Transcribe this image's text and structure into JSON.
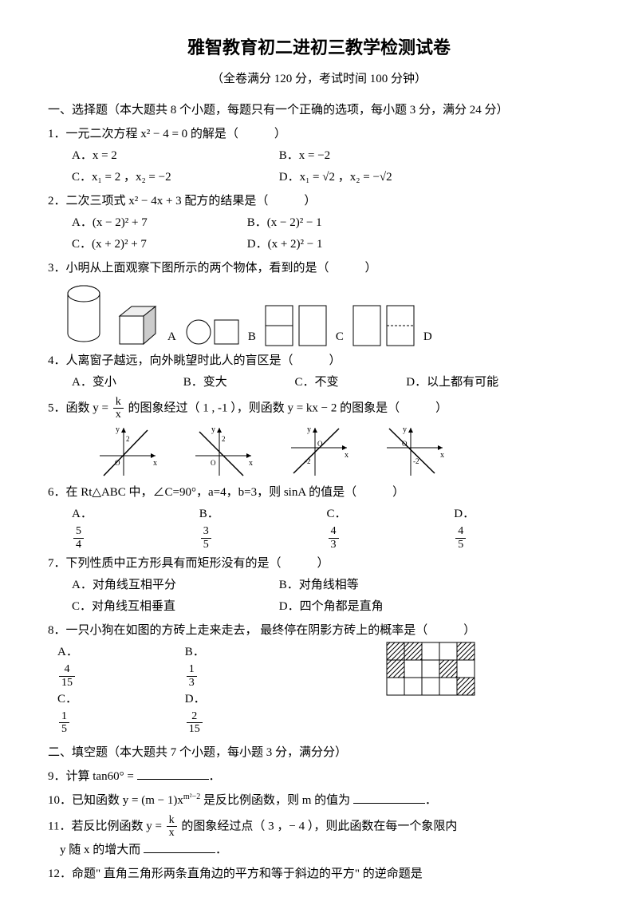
{
  "title": "雅智教育初二进初三教学检测试卷",
  "subtitle": "（全卷满分 120 分，考试时间 100 分钟）",
  "section1": "一、选择题（本大题共 8 个小题，每题只有一个正确的选项，每小题 3 分，满分 24 分）",
  "q1": {
    "stem": "1．一元二次方程 x² − 4 = 0 的解是（　　　）",
    "A": "A．x = 2",
    "B": "B．x = −2",
    "C": "C．x₁ = 2 ，x₂ = −2",
    "D": "D．x₁ = √2 ，x₂ = −√2"
  },
  "q2": {
    "stem": "2．二次三项式 x² − 4x + 3 配方的结果是（　　　）",
    "A": "A．(x − 2)² + 7",
    "B": "B．(x − 2)² − 1",
    "C": "C．(x + 2)² + 7",
    "D": "D．(x + 2)² − 1"
  },
  "q3": {
    "stem": "3．小明从上面观察下图所示的两个物体，看到的是（　　　）",
    "labels": {
      "A": "A",
      "B": "B",
      "C": "C",
      "D": "D"
    }
  },
  "q4": {
    "stem": "4．人离窗子越远，向外眺望时此人的盲区是（　　　）",
    "A": "A．变小",
    "B": "B．变大",
    "C": "C．不变",
    "D": "D．以上都有可能"
  },
  "q5": {
    "stempre": "5．函数 y = ",
    "stempost": " 的图象经过（ 1 , -1 ），则函数 y = kx − 2 的图象是（　　　）",
    "frac": {
      "n": "k",
      "d": "x"
    },
    "labels": {
      "A": "A",
      "B": "B",
      "C": "C",
      "D": "D"
    }
  },
  "q6": {
    "stem": "6．在 Rt△ABC 中，∠C=90°，a=4，b=3，则 sinA 的值是（　　　）",
    "A": "A．",
    "B": "B．",
    "C": "C．",
    "D": "D．",
    "fracs": {
      "A": {
        "n": "5",
        "d": "4"
      },
      "B": {
        "n": "3",
        "d": "5"
      },
      "C": {
        "n": "4",
        "d": "3"
      },
      "D": {
        "n": "4",
        "d": "5"
      }
    }
  },
  "q7": {
    "stem": "7．下列性质中正方形具有而矩形没有的是（　　　）",
    "A": "A．对角线互相平分",
    "B": "B．对角线相等",
    "C": "C．对角线互相垂直",
    "D": "D．四个角都是直角"
  },
  "q8": {
    "stem": "8．一只小狗在如图的方砖上走来走去， 最终停在阴影方砖上的概率是（　　　）",
    "A": "A．",
    "B": "B．",
    "C": "C．",
    "D": "D．",
    "fracs": {
      "A": {
        "n": "4",
        "d": "15"
      },
      "B": {
        "n": "1",
        "d": "3"
      },
      "C": {
        "n": "1",
        "d": "5"
      },
      "D": {
        "n": "2",
        "d": "15"
      }
    }
  },
  "grid8": {
    "cols": 5,
    "rows": 3,
    "cell": 22,
    "shaded": [
      [
        0,
        0
      ],
      [
        1,
        0
      ],
      [
        4,
        0
      ],
      [
        0,
        1
      ],
      [
        3,
        1
      ],
      [
        4,
        2
      ]
    ],
    "stroke": "#000",
    "bg": "#fff"
  },
  "section2": "二、填空题（本大题共 7 个小题，每小题 3 分，满分分）",
  "q9": "9．计算 tan60° = ",
  "q10": {
    "pre": "10．已知函数 y = (m − 1)x",
    "sup": "m²−2",
    "post": " 是反比例函数，则 m 的值为 "
  },
  "q11": {
    "pre": "11．若反比例函数 y = ",
    "frac": {
      "n": "k",
      "d": "x"
    },
    "mid": " 的图象经过点（ 3 ，− 4 ），则此函数在每一个象限内",
    "line2": "y 随 x 的增大而 "
  },
  "q12": "12．命题\" 直角三角形两条直角边的平方和等于斜边的平方\" 的逆命题是",
  "styling": {
    "body_font_size": 15,
    "title_font_size": 22,
    "line_height": 1.8,
    "page_bg": "#ffffff",
    "text_color": "#000000"
  }
}
